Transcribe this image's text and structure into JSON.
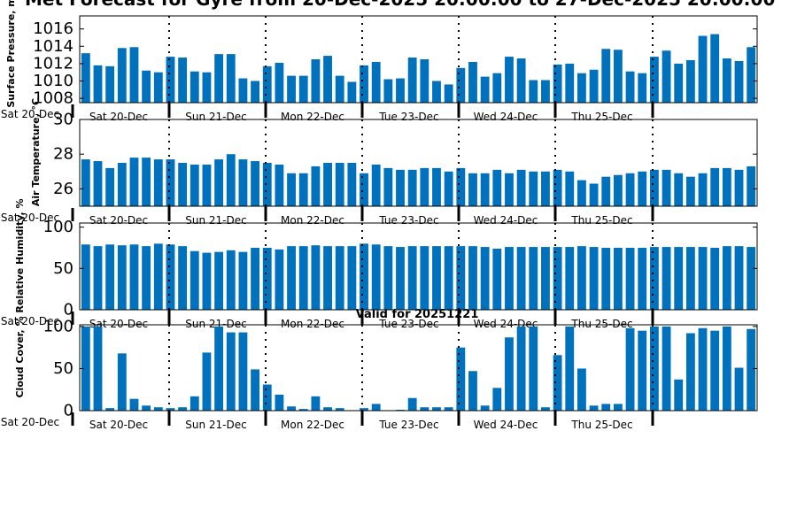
{
  "title": "Met Forecast for Gyre from 20-Dec-2025 20:00:00 to 27-Dec-2025 20:00:00",
  "subtitle": "Valid for 20251221",
  "colors": {
    "bar": "#0072bd",
    "axis": "#000000",
    "divider": "#000000"
  },
  "chart_data": [
    {
      "type": "bar",
      "ylabel": "Surface Pressure, mb",
      "ylim": [
        1007.5,
        1017.5
      ],
      "yticks": [
        1008,
        1010,
        1012,
        1014,
        1016
      ],
      "left_tick": "Sat 20-Dec",
      "day_labels": [
        "Sat 20-Dec",
        "Sun 21-Dec",
        "Mon 22-Dec",
        "Tue 23-Dec",
        "Wed 24-Dec",
        "Thu 25-Dec"
      ],
      "values": [
        1013.2,
        1011.8,
        1011.7,
        1013.8,
        1013.9,
        1011.2,
        1011.0,
        1012.8,
        1012.7,
        1011.1,
        1011.0,
        1013.1,
        1013.1,
        1010.3,
        1010.0,
        1011.7,
        1012.1,
        1010.6,
        1010.6,
        1012.5,
        1012.9,
        1010.6,
        1009.9,
        1011.8,
        1012.2,
        1010.2,
        1010.3,
        1012.7,
        1012.5,
        1010.0,
        1009.6,
        1011.5,
        1012.2,
        1010.5,
        1010.9,
        1012.8,
        1012.6,
        1010.1,
        1010.1,
        1011.9,
        1012.0,
        1010.9,
        1011.3,
        1013.7,
        1013.6,
        1011.1,
        1010.9,
        1012.8,
        1013.5,
        1012.0,
        1012.4,
        1015.2,
        1015.4,
        1012.6,
        1012.3,
        1013.9
      ]
    },
    {
      "type": "bar",
      "ylabel": "Air Temperature, °C",
      "ylim": [
        25,
        30
      ],
      "yticks": [
        26,
        28,
        30
      ],
      "left_tick": "Sat 20-Dec",
      "day_labels": [
        "Sat 20-Dec",
        "Sun 21-Dec",
        "Mon 22-Dec",
        "Tue 23-Dec",
        "Wed 24-Dec",
        "Thu 25-Dec"
      ],
      "values": [
        27.7,
        27.6,
        27.2,
        27.5,
        27.8,
        27.8,
        27.7,
        27.7,
        27.5,
        27.4,
        27.4,
        27.7,
        28.0,
        27.7,
        27.6,
        27.5,
        27.4,
        26.9,
        26.9,
        27.3,
        27.5,
        27.5,
        27.5,
        26.9,
        27.4,
        27.2,
        27.1,
        27.1,
        27.2,
        27.2,
        27.0,
        27.2,
        26.9,
        26.9,
        27.1,
        26.9,
        27.1,
        27.0,
        27.0,
        27.1,
        27.0,
        26.5,
        26.3,
        26.7,
        26.8,
        26.9,
        27.0,
        27.1,
        27.1,
        26.9,
        26.7,
        26.9,
        27.2,
        27.2,
        27.1,
        27.3
      ]
    },
    {
      "type": "bar",
      "ylabel": "Relative Humidity, %",
      "ylim": [
        0,
        105
      ],
      "yticks": [
        0,
        50,
        100
      ],
      "left_tick": "Sat 20-Dec",
      "day_labels": [
        "Sat 20-Dec",
        "Sun 21-Dec",
        "Mon 22-Dec",
        "Tue 23-Dec",
        "Wed 24-Dec",
        "Thu 25-Dec"
      ],
      "values": [
        79,
        77,
        79,
        78,
        79,
        77,
        80,
        79,
        77,
        71,
        69,
        70,
        72,
        70,
        75,
        75,
        73,
        77,
        77,
        78,
        77,
        77,
        77,
        80,
        79,
        77,
        76,
        77,
        77,
        77,
        77,
        77,
        77,
        76,
        74,
        76,
        76,
        76,
        76,
        76,
        76,
        77,
        76,
        75,
        75,
        75,
        75,
        76,
        76,
        76,
        76,
        76,
        75,
        77,
        77,
        76
      ]
    },
    {
      "type": "bar",
      "ylabel": "Cloud Cover, %",
      "ylim": [
        0,
        102
      ],
      "yticks": [
        0,
        50,
        100
      ],
      "left_tick": "Sat 20-Dec",
      "day_labels": [
        "Sat 20-Dec",
        "Sun 21-Dec",
        "Mon 22-Dec",
        "Tue 23-Dec",
        "Wed 24-Dec",
        "Thu 25-Dec"
      ],
      "values": [
        100,
        100,
        3,
        68,
        14,
        6,
        4,
        3,
        4,
        17,
        69,
        100,
        93,
        93,
        49,
        31,
        19,
        5,
        2,
        17,
        4,
        3,
        0,
        3,
        8,
        0,
        1,
        15,
        4,
        4,
        4,
        75,
        47,
        6,
        27,
        87,
        100,
        100,
        4,
        66,
        100,
        50,
        6,
        8,
        8,
        98,
        95,
        100,
        100,
        37,
        92,
        98,
        95,
        100,
        51,
        97
      ]
    }
  ]
}
